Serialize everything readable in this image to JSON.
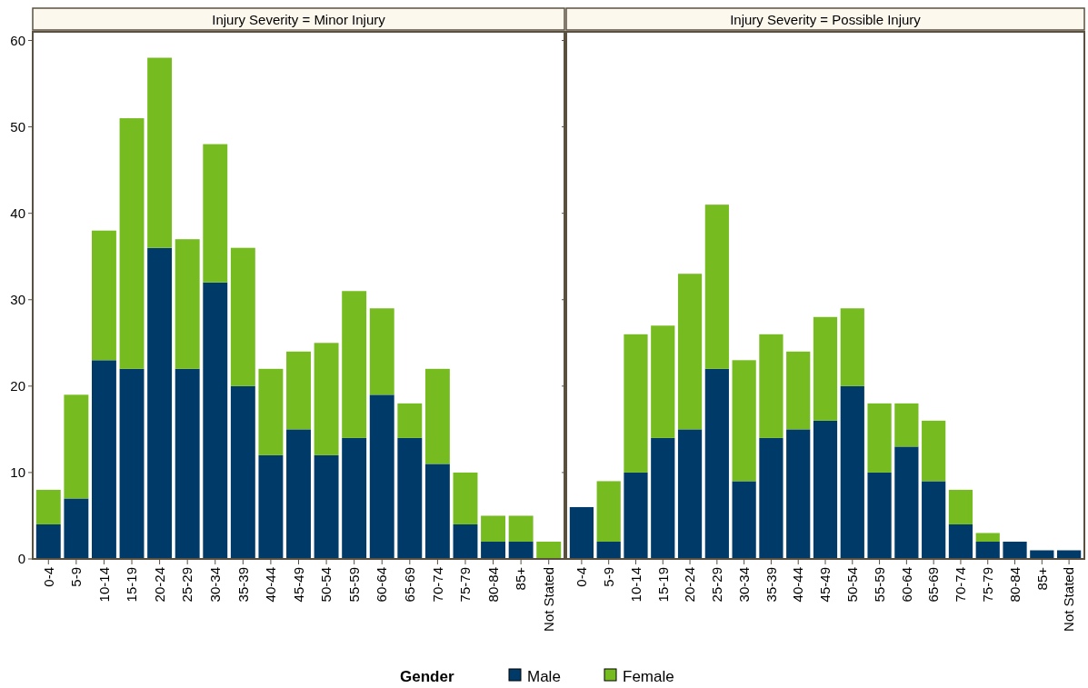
{
  "chart_data": [
    {
      "type": "bar",
      "title": "Injury Severity = Minor Injury",
      "stacked": true,
      "categories": [
        "0-4",
        "5-9",
        "10-14",
        "15-19",
        "20-24",
        "25-29",
        "30-34",
        "35-39",
        "40-44",
        "45-49",
        "50-54",
        "55-59",
        "60-64",
        "65-69",
        "70-74",
        "75-79",
        "80-84",
        "85+",
        "Not Stated"
      ],
      "series": [
        {
          "name": "Male",
          "color": "#003a68",
          "values": [
            4,
            7,
            23,
            22,
            36,
            22,
            32,
            20,
            12,
            15,
            12,
            14,
            19,
            14,
            11,
            4,
            2,
            2,
            0
          ]
        },
        {
          "name": "Female",
          "color": "#76bc21",
          "values": [
            4,
            12,
            15,
            29,
            22,
            15,
            16,
            16,
            10,
            9,
            13,
            17,
            10,
            4,
            11,
            6,
            3,
            3,
            2
          ]
        }
      ],
      "ylim": [
        0,
        61
      ],
      "yticks": [
        0,
        10,
        20,
        30,
        40,
        50,
        60
      ],
      "grid": false,
      "legend": "bottom",
      "legend_title": "Gender"
    },
    {
      "type": "bar",
      "title": "Injury Severity = Possible Injury",
      "stacked": true,
      "categories": [
        "0-4",
        "5-9",
        "10-14",
        "15-19",
        "20-24",
        "25-29",
        "30-34",
        "35-39",
        "40-44",
        "45-49",
        "50-54",
        "55-59",
        "60-64",
        "65-69",
        "70-74",
        "75-79",
        "80-84",
        "85+",
        "Not Stated"
      ],
      "series": [
        {
          "color": "#003a68",
          "values": [
            6,
            2,
            10,
            14,
            15,
            22,
            9,
            14,
            15,
            16,
            20,
            10,
            13,
            9,
            4,
            2,
            2,
            1,
            1
          ]
        },
        {
          "color": "#76bc21",
          "values": [
            0,
            7,
            16,
            13,
            18,
            19,
            14,
            12,
            9,
            12,
            9,
            8,
            5,
            7,
            4,
            1,
            0,
            0,
            0
          ]
        }
      ],
      "ylim": [
        0,
        61
      ],
      "yticks": [
        0,
        10,
        20,
        30,
        40,
        50,
        60
      ],
      "grid": false,
      "tick_labels": "x"
    }
  ]
}
